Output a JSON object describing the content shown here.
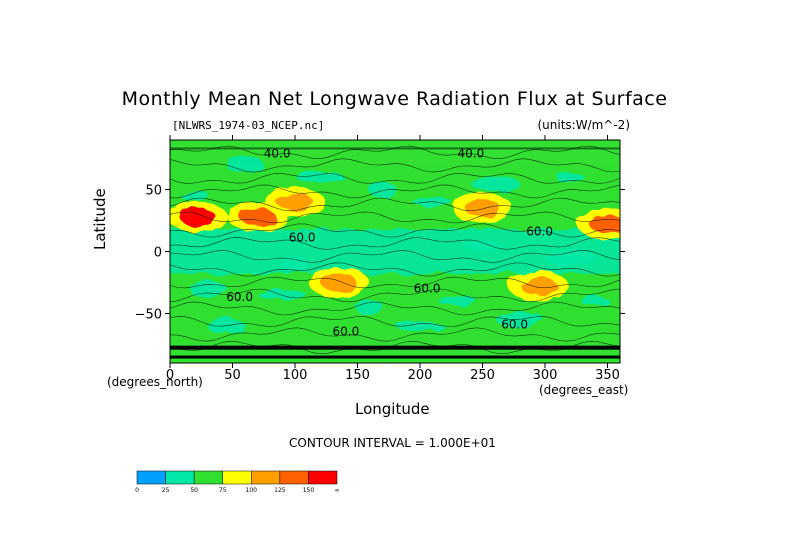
{
  "chart_data": {
    "type": "heatmap",
    "title": "Monthly Mean Net Longwave Radiation Flux at Surface",
    "file_label": "[NLWRS_1974-03_NCEP.nc]",
    "units_label": "(units:W/m^-2)",
    "xlabel": "Longitude",
    "ylabel": "Latitude",
    "x_unit_label": "(degrees_east)",
    "y_unit_label": "(degrees_north)",
    "xlim": [
      0,
      360
    ],
    "ylim": [
      -90,
      90
    ],
    "x_ticks": [
      0,
      50,
      100,
      150,
      200,
      250,
      300,
      350
    ],
    "y_ticks": [
      50,
      0,
      -50
    ],
    "y_tick_labels": [
      "50",
      "0",
      "−50"
    ],
    "contour_interval_text": "CONTOUR INTERVAL = 1.000E+01",
    "contour_labels": [
      {
        "text": "40.0",
        "lon": 75,
        "lat": 76
      },
      {
        "text": "40.0",
        "lon": 230,
        "lat": 76
      },
      {
        "text": "60.0",
        "lon": 95,
        "lat": 8
      },
      {
        "text": "60.0",
        "lon": 285,
        "lat": 13
      },
      {
        "text": "60.0",
        "lon": 45,
        "lat": -40
      },
      {
        "text": "60.0",
        "lon": 195,
        "lat": -33
      },
      {
        "text": "60.0",
        "lon": 265,
        "lat": -62
      },
      {
        "text": "60.0",
        "lon": 130,
        "lat": -68
      }
    ],
    "colorbar": {
      "bins": [
        {
          "from": "0",
          "to": "25",
          "color": "#00a0ff"
        },
        {
          "from": "25",
          "to": "50",
          "color": "#00e8a8"
        },
        {
          "from": "50",
          "to": "75",
          "color": "#30e030"
        },
        {
          "from": "75",
          "to": "100",
          "color": "#ffff00"
        },
        {
          "from": "100",
          "to": "125",
          "color": "#ffa000"
        },
        {
          "from": "125",
          "to": "150",
          "color": "#ff6000"
        },
        {
          "from": "150",
          "to": "∞",
          "color": "#ff0000"
        }
      ],
      "labels": [
        "0",
        "25",
        "50",
        "75",
        "100",
        "125",
        "150",
        "∞"
      ]
    },
    "field_regions": [
      {
        "name": "background",
        "level": 60,
        "color": "#30e030"
      },
      {
        "name": "tropical-band",
        "lon_range": [
          0,
          360
        ],
        "lat_range": [
          -18,
          18
        ],
        "level": 50,
        "color": "#00e8a8"
      },
      {
        "name": "n-africa-hot",
        "lon": 22,
        "lat": 28,
        "level": 150,
        "color": "#ff0000"
      },
      {
        "name": "arabia-hot",
        "lon": 70,
        "lat": 28,
        "level": 125,
        "color": "#ff6000"
      },
      {
        "name": "central-asia",
        "lon": 100,
        "lat": 40,
        "level": 100,
        "color": "#ffa000"
      },
      {
        "name": "australia",
        "lon": 135,
        "lat": -25,
        "level": 100,
        "color": "#ffa000"
      },
      {
        "name": "n-america-west",
        "lon": 250,
        "lat": 35,
        "level": 100,
        "color": "#ffa000"
      },
      {
        "name": "s-america",
        "lon": 295,
        "lat": -28,
        "level": 100,
        "color": "#ffa000"
      },
      {
        "name": "mexico",
        "lon": 350,
        "lat": 22,
        "level": 125,
        "color": "#ff6000"
      },
      {
        "name": "antarctic-belt",
        "lat_range": [
          -90,
          -70
        ],
        "level": 60,
        "color": "#30e030"
      },
      {
        "name": "arctic-belt",
        "lat_range": [
          70,
          90
        ],
        "level": 60,
        "color": "#30e030"
      }
    ],
    "grid": false,
    "legend": "bottom-left"
  }
}
